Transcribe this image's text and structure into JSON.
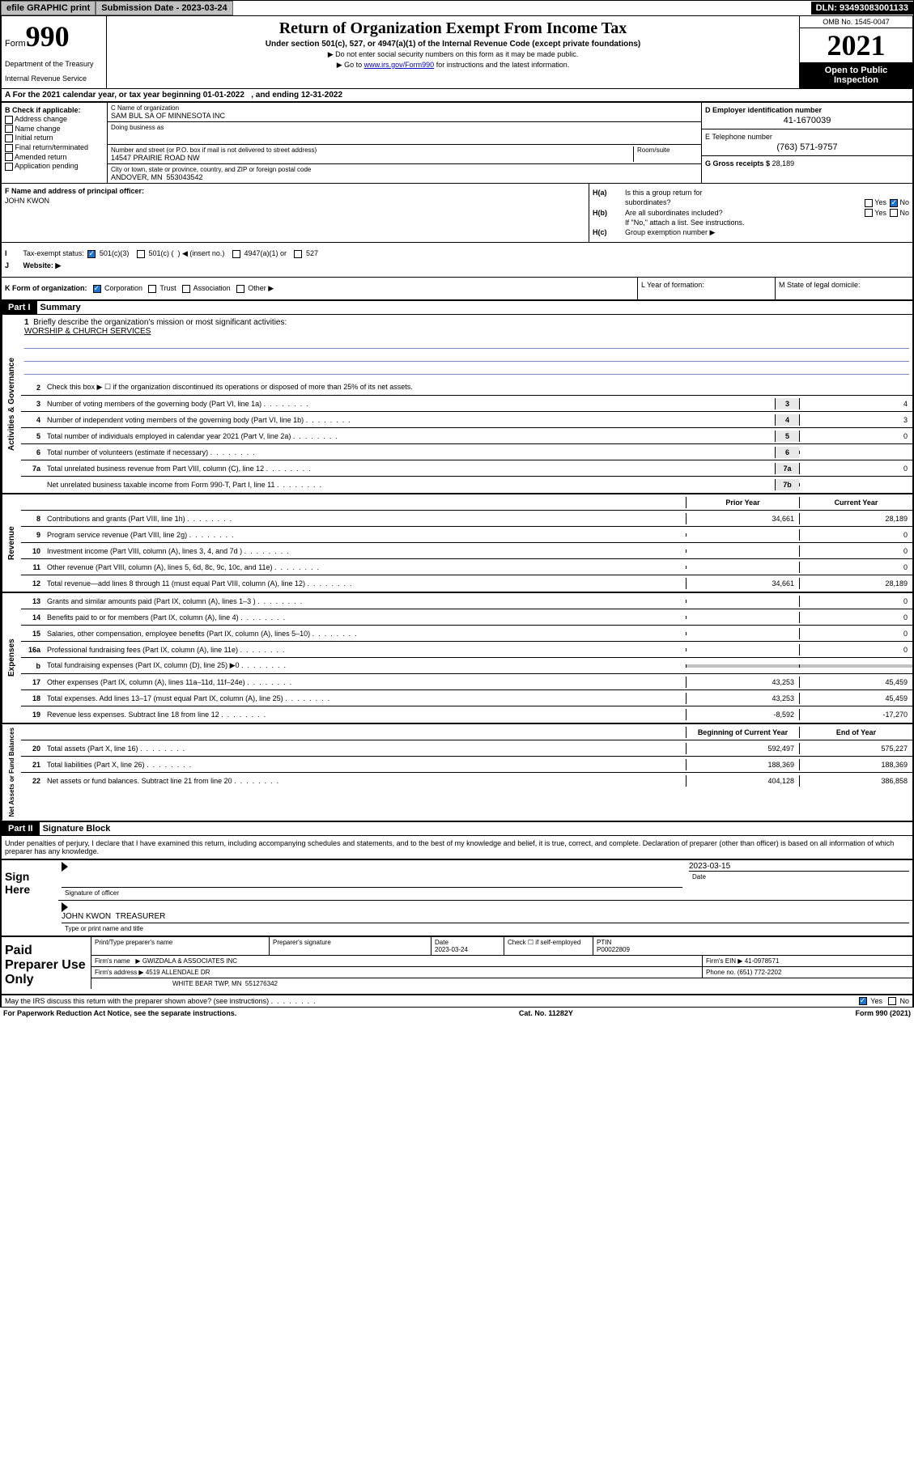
{
  "topbar": {
    "efile": "efile GRAPHIC print",
    "submission_label": "Submission Date - 2023-03-24",
    "dln": "DLN: 93493083001133"
  },
  "header": {
    "form_prefix": "Form",
    "form_number": "990",
    "dept": "Department of the Treasury",
    "irs": "Internal Revenue Service",
    "title": "Return of Organization Exempt From Income Tax",
    "subtitle": "Under section 501(c), 527, or 4947(a)(1) of the Internal Revenue Code (except private foundations)",
    "note1": "▶ Do not enter social security numbers on this form as it may be made public.",
    "note2_pre": "▶ Go to ",
    "note2_link": "www.irs.gov/Form990",
    "note2_post": " for instructions and the latest information.",
    "omb": "OMB No. 1545-0047",
    "year": "2021",
    "open": "Open to Public Inspection"
  },
  "line_a": "A For the 2021 calendar year, or tax year beginning 01-01-2022   , and ending 12-31-2022",
  "section_b": {
    "header": "B Check if applicable:",
    "items": [
      "Address change",
      "Name change",
      "Initial return",
      "Final return/terminated",
      "Amended return",
      "Application pending"
    ]
  },
  "section_c": {
    "name_label": "C Name of organization",
    "name": "SAM BUL SA OF MINNESOTA INC",
    "dba_label": "Doing business as",
    "addr_label": "Number and street (or P.O. box if mail is not delivered to street address)",
    "room_label": "Room/suite",
    "addr": "14547 PRAIRIE ROAD NW",
    "city_label": "City or town, state or province, country, and ZIP or foreign postal code",
    "city": "ANDOVER, MN  553043542"
  },
  "section_d": {
    "label": "D Employer identification number",
    "value": "41-1670039"
  },
  "section_e": {
    "label": "E Telephone number",
    "value": "(763) 571-9757"
  },
  "section_g": {
    "label": "G Gross receipts $",
    "value": "28,189"
  },
  "section_f": {
    "label": "F  Name and address of principal officer:",
    "name": "JOHN KWON"
  },
  "section_h": {
    "ha": "Is this a group return for",
    "ha2": "subordinates?",
    "hb": "Are all subordinates included?",
    "hb_note": "If \"No,\" attach a list. See instructions.",
    "hc": "Group exemption number ▶",
    "yes": "Yes",
    "no": "No"
  },
  "section_i": {
    "label": "Tax-exempt status:",
    "opts": [
      "501(c)(3)",
      "501(c) (  ) ◀ (insert no.)",
      "4947(a)(1) or",
      "527"
    ]
  },
  "section_j": {
    "label": "Website: ▶"
  },
  "section_k": {
    "label": "K Form of organization:",
    "opts": [
      "Corporation",
      "Trust",
      "Association",
      "Other ▶"
    ]
  },
  "section_l": "L Year of formation:",
  "section_m": "M State of legal domicile:",
  "part1": {
    "hdr": "Part I",
    "title": "Summary",
    "q1": "Briefly describe the organization's mission or most significant activities:",
    "mission": "WORSHIP & CHURCH SERVICES",
    "q2": "Check this box ▶ ☐  if the organization discontinued its operations or disposed of more than 25% of its net assets.",
    "rows_gov": [
      {
        "n": "3",
        "t": "Number of voting members of the governing body (Part VI, line 1a)",
        "box": "3",
        "v": "4"
      },
      {
        "n": "4",
        "t": "Number of independent voting members of the governing body (Part VI, line 1b)",
        "box": "4",
        "v": "3"
      },
      {
        "n": "5",
        "t": "Total number of individuals employed in calendar year 2021 (Part V, line 2a)",
        "box": "5",
        "v": "0"
      },
      {
        "n": "6",
        "t": "Total number of volunteers (estimate if necessary)",
        "box": "6",
        "v": ""
      },
      {
        "n": "7a",
        "t": "Total unrelated business revenue from Part VIII, column (C), line 12",
        "box": "7a",
        "v": "0"
      },
      {
        "n": "",
        "t": "Net unrelated business taxable income from Form 990-T, Part I, line 11",
        "box": "7b",
        "v": ""
      }
    ],
    "col_prior": "Prior Year",
    "col_current": "Current Year",
    "rows_rev": [
      {
        "n": "8",
        "t": "Contributions and grants (Part VIII, line 1h)",
        "p": "34,661",
        "c": "28,189"
      },
      {
        "n": "9",
        "t": "Program service revenue (Part VIII, line 2g)",
        "p": "",
        "c": "0"
      },
      {
        "n": "10",
        "t": "Investment income (Part VIII, column (A), lines 3, 4, and 7d )",
        "p": "",
        "c": "0"
      },
      {
        "n": "11",
        "t": "Other revenue (Part VIII, column (A), lines 5, 6d, 8c, 9c, 10c, and 11e)",
        "p": "",
        "c": "0"
      },
      {
        "n": "12",
        "t": "Total revenue—add lines 8 through 11 (must equal Part VIII, column (A), line 12)",
        "p": "34,661",
        "c": "28,189"
      }
    ],
    "rows_exp": [
      {
        "n": "13",
        "t": "Grants and similar amounts paid (Part IX, column (A), lines 1–3 )",
        "p": "",
        "c": "0"
      },
      {
        "n": "14",
        "t": "Benefits paid to or for members (Part IX, column (A), line 4)",
        "p": "",
        "c": "0"
      },
      {
        "n": "15",
        "t": "Salaries, other compensation, employee benefits (Part IX, column (A), lines 5–10)",
        "p": "",
        "c": "0"
      },
      {
        "n": "16a",
        "t": "Professional fundraising fees (Part IX, column (A), line 11e)",
        "p": "",
        "c": "0"
      },
      {
        "n": "b",
        "t": "Total fundraising expenses (Part IX, column (D), line 25) ▶0",
        "p": "shaded",
        "c": "shaded"
      },
      {
        "n": "17",
        "t": "Other expenses (Part IX, column (A), lines 11a–11d, 11f–24e)",
        "p": "43,253",
        "c": "45,459"
      },
      {
        "n": "18",
        "t": "Total expenses. Add lines 13–17 (must equal Part IX, column (A), line 25)",
        "p": "43,253",
        "c": "45,459"
      },
      {
        "n": "19",
        "t": "Revenue less expenses. Subtract line 18 from line 12",
        "p": "-8,592",
        "c": "-17,270"
      }
    ],
    "col_begin": "Beginning of Current Year",
    "col_end": "End of Year",
    "rows_net": [
      {
        "n": "20",
        "t": "Total assets (Part X, line 16)",
        "p": "592,497",
        "c": "575,227"
      },
      {
        "n": "21",
        "t": "Total liabilities (Part X, line 26)",
        "p": "188,369",
        "c": "188,369"
      },
      {
        "n": "22",
        "t": "Net assets or fund balances. Subtract line 21 from line 20",
        "p": "404,128",
        "c": "386,858"
      }
    ],
    "sidebar_gov": "Activities & Governance",
    "sidebar_rev": "Revenue",
    "sidebar_exp": "Expenses",
    "sidebar_net": "Net Assets or Fund Balances"
  },
  "part2": {
    "hdr": "Part II",
    "title": "Signature Block",
    "intro": "Under penalties of perjury, I declare that I have examined this return, including accompanying schedules and statements, and to the best of my knowledge and belief, it is true, correct, and complete. Declaration of preparer (other than officer) is based on all information of which preparer has any knowledge.",
    "sign_here": "Sign Here",
    "sig_officer": "Signature of officer",
    "sig_date": "Date",
    "sig_date_val": "2023-03-15",
    "sig_name": "JOHN KWON  TREASURER",
    "sig_name_label": "Type or print name and title",
    "paid": "Paid Preparer Use Only",
    "prep_name_label": "Print/Type preparer's name",
    "prep_sig_label": "Preparer's signature",
    "prep_date_label": "Date",
    "prep_date": "2023-03-24",
    "prep_check": "Check ☐ if self-employed",
    "ptin_label": "PTIN",
    "ptin": "P00022809",
    "firm_name_label": "Firm's name   ▶",
    "firm_name": "GWIZDALA & ASSOCIATES INC",
    "firm_ein_label": "Firm's EIN ▶",
    "firm_ein": "41-0978571",
    "firm_addr_label": "Firm's address ▶",
    "firm_addr": "4519 ALLENDALE DR",
    "firm_addr2": "WHITE BEAR TWP, MN  551276342",
    "phone_label": "Phone no.",
    "phone": "(651) 772-2202",
    "may_irs": "May the IRS discuss this return with the preparer shown above? (see instructions)",
    "paperwork": "For Paperwork Reduction Act Notice, see the separate instructions.",
    "cat": "Cat. No. 11282Y",
    "form_foot": "Form 990 (2021)"
  }
}
